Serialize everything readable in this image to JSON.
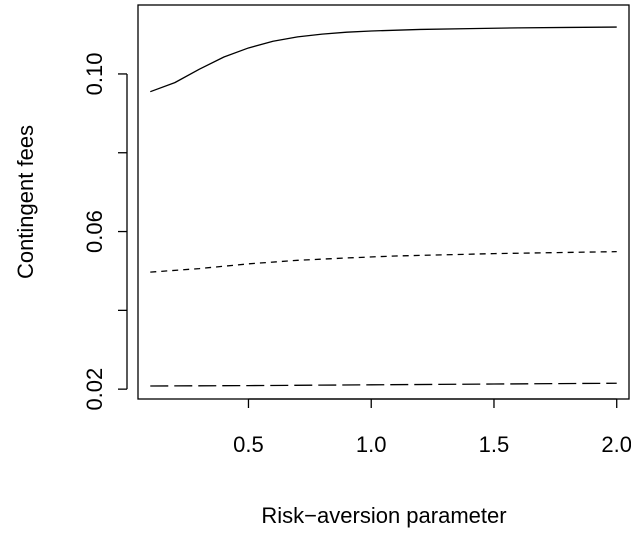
{
  "chart_data": {
    "type": "line",
    "xlabel": "Risk−aversion parameter",
    "ylabel": "Contingent fees",
    "xlim": [
      0.05,
      2.05
    ],
    "ylim": [
      0.0175,
      0.1175
    ],
    "x_ticks": [
      0.5,
      1.0,
      1.5,
      2.0
    ],
    "x_tick_labels": [
      "0.5",
      "1.0",
      "1.5",
      "2.0"
    ],
    "y_ticks": [
      0.02,
      0.04,
      0.06,
      0.08,
      0.1
    ],
    "y_tick_labels": [
      "0.02",
      "",
      "0.06",
      "",
      "0.10"
    ],
    "grid": false,
    "series": [
      {
        "line_style": "solid",
        "color": "#000000",
        "x": [
          0.1,
          0.2,
          0.3,
          0.4,
          0.5,
          0.6,
          0.7,
          0.8,
          0.9,
          1.0,
          1.2,
          1.4,
          1.6,
          1.8,
          2.0
        ],
        "y": [
          0.0955,
          0.0978,
          0.1012,
          0.1043,
          0.1066,
          0.1083,
          0.1094,
          0.1101,
          0.1106,
          0.1109,
          0.1113,
          0.1115,
          0.1117,
          0.1118,
          0.1119
        ]
      },
      {
        "line_style": "dashed",
        "color": "#000000",
        "x": [
          0.1,
          0.3,
          0.5,
          0.7,
          0.9,
          1.1,
          1.3,
          1.5,
          1.7,
          2.0
        ],
        "y": [
          0.0497,
          0.0506,
          0.0518,
          0.0527,
          0.0533,
          0.0538,
          0.0541,
          0.0544,
          0.0546,
          0.0549
        ]
      },
      {
        "line_style": "longdash",
        "color": "#000000",
        "x": [
          0.1,
          0.5,
          1.0,
          1.5,
          2.0
        ],
        "y": [
          0.0208,
          0.0209,
          0.0211,
          0.0213,
          0.0215
        ]
      }
    ]
  }
}
